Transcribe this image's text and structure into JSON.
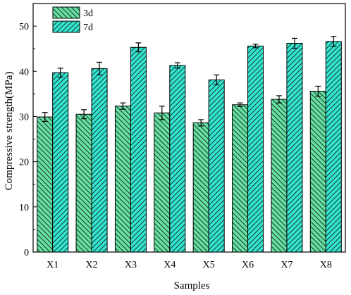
{
  "chart_data": {
    "type": "bar",
    "title": "",
    "xlabel": "Samples",
    "ylabel": "Compressive strength(MPa)",
    "categories": [
      "X1",
      "X2",
      "X3",
      "X4",
      "X5",
      "X6",
      "X7",
      "X8"
    ],
    "ylim": [
      0,
      55
    ],
    "yticks": [
      0,
      10,
      20,
      30,
      40,
      50
    ],
    "series": [
      {
        "name": "3d",
        "color": "#66e0a3",
        "hatch": "backslash",
        "values": [
          29.9,
          30.5,
          32.3,
          30.8,
          28.6,
          32.6,
          33.8,
          35.6
        ],
        "errors": [
          1.0,
          1.0,
          0.7,
          1.5,
          0.7,
          0.4,
          0.8,
          1.1
        ]
      },
      {
        "name": "7d",
        "color": "#33e6d0",
        "hatch": "slash",
        "values": [
          39.7,
          40.6,
          45.3,
          41.3,
          38.1,
          45.6,
          46.2,
          46.6
        ],
        "errors": [
          1.0,
          1.4,
          1.0,
          0.6,
          1.1,
          0.4,
          1.1,
          1.1
        ]
      }
    ],
    "legend": "top-left",
    "grid": false
  }
}
